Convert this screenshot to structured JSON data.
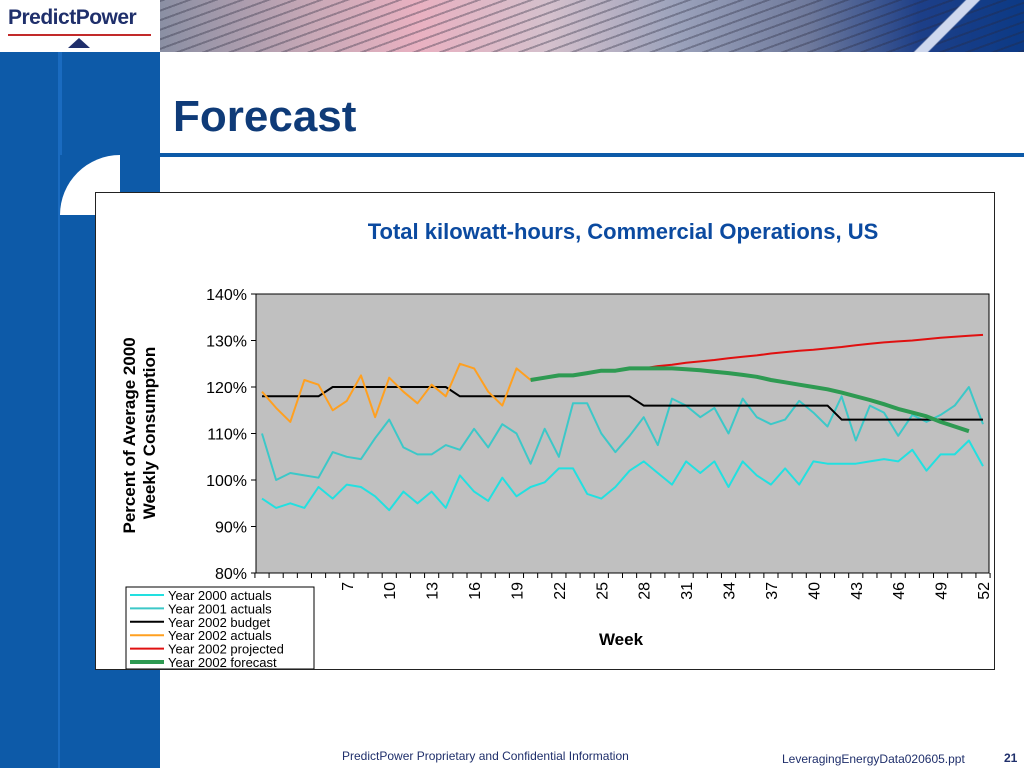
{
  "brand": {
    "logo_text": "PredictPower"
  },
  "slide": {
    "title": "Forecast"
  },
  "footer": {
    "note": "PredictPower Proprietary and Confidential Information",
    "file": "LeveragingEnergyData020605.ppt",
    "page": "21"
  },
  "colors": {
    "brand_blue": "#0d5aa8",
    "title_navy": "#0f3b78",
    "chart_title": "#0b4aa0",
    "plot_bg": "#c0c0c0",
    "y2000": "#22e0e0",
    "y2001": "#3cc8c8",
    "budget": "#000000",
    "actual2002": "#ffa020",
    "projected": "#e01010",
    "forecast": "#2e9a52"
  },
  "chart_data": {
    "type": "line",
    "title": "Total kilowatt-hours, Commercial Operations, US",
    "xlabel": "Week",
    "ylabel": "Percent of Average 2000 Weekly Consumption",
    "ylim": [
      80,
      140
    ],
    "yticks": [
      "80%",
      "90%",
      "100%",
      "110%",
      "120%",
      "130%",
      "140%"
    ],
    "x_range": [
      1,
      52
    ],
    "x_tick_labels": [
      7,
      10,
      13,
      16,
      19,
      22,
      25,
      28,
      31,
      34,
      37,
      40,
      43,
      46,
      49,
      52
    ],
    "grid": false,
    "legend": "bottom-left",
    "series": [
      {
        "name": "Year 2000 actuals",
        "color": "#22e0e0",
        "width": 2,
        "x_start": 1,
        "values": [
          96,
          94,
          95,
          94,
          98.5,
          96,
          99,
          98.5,
          96.5,
          93.5,
          97.5,
          95,
          97.5,
          94,
          101,
          97.5,
          95.5,
          100.5,
          96.5,
          98.5,
          99.5,
          102.5,
          102.5,
          97,
          96,
          98.5,
          102,
          104,
          101.5,
          99,
          104,
          101.5,
          104,
          98.5,
          104,
          101,
          99,
          102.5,
          99,
          104,
          103.5,
          103.5,
          103.5,
          104,
          104.5,
          104,
          106.5,
          102,
          105.5,
          105.5,
          108.5,
          103
        ]
      },
      {
        "name": "Year 2001 actuals",
        "color": "#3cc8c8",
        "width": 2,
        "x_start": 1,
        "values": [
          110,
          100,
          101.5,
          101,
          100.5,
          106,
          105,
          104.5,
          109,
          113,
          107,
          105.5,
          105.5,
          107.5,
          106.5,
          111,
          107,
          112,
          110,
          103.5,
          111,
          105,
          116.5,
          116.5,
          110,
          106,
          109.5,
          113.5,
          107.5,
          117.5,
          116,
          113.5,
          115.5,
          110,
          117.5,
          113.5,
          112,
          113,
          117,
          114.5,
          111.5,
          118,
          108.5,
          116,
          114.5,
          109.5,
          114,
          112.5,
          114,
          116,
          120,
          112
        ]
      },
      {
        "name": "Year 2002 budget",
        "color": "#000000",
        "width": 2,
        "x_start": 1,
        "values": [
          118,
          118,
          118,
          118,
          118,
          120,
          120,
          120,
          120,
          120,
          120,
          120,
          120,
          120,
          118,
          118,
          118,
          118,
          118,
          118,
          118,
          118,
          118,
          118,
          118,
          118,
          118,
          116,
          116,
          116,
          116,
          116,
          116,
          116,
          116,
          116,
          116,
          116,
          116,
          116,
          116,
          113,
          113,
          113,
          113,
          113,
          113,
          113,
          113,
          113,
          113,
          113
        ]
      },
      {
        "name": "Year 2002 actuals",
        "color": "#ffa020",
        "width": 2,
        "x_start": 1,
        "values": [
          119,
          115.5,
          112.5,
          121.5,
          120.5,
          115,
          117,
          122.5,
          113.5,
          122,
          119,
          116.5,
          120.5,
          118,
          125,
          124,
          119,
          116,
          124,
          121.5
        ]
      },
      {
        "name": "Year 2002 projected",
        "color": "#e01010",
        "width": 2,
        "x_start": 20,
        "values": [
          121.5,
          122,
          122.5,
          122.5,
          123,
          123.5,
          123.5,
          124,
          124,
          124.5,
          124.8,
          125.2,
          125.5,
          125.8,
          126.2,
          126.5,
          126.8,
          127.2,
          127.5,
          127.8,
          128,
          128.3,
          128.6,
          129,
          129.3,
          129.6,
          129.8,
          130,
          130.3,
          130.6,
          130.8,
          131,
          131.2
        ]
      },
      {
        "name": "Year 2002 forecast",
        "color": "#2e9a52",
        "width": 4,
        "x_start": 20,
        "values": [
          121.5,
          122,
          122.5,
          122.5,
          123,
          123.5,
          123.5,
          124,
          124,
          124,
          124,
          123.8,
          123.6,
          123.3,
          123,
          122.6,
          122.2,
          121.5,
          121,
          120.5,
          120,
          119.5,
          118.8,
          118,
          117.2,
          116.3,
          115.3,
          114.5,
          113.7,
          112.5,
          111.5,
          110.5
        ]
      }
    ]
  }
}
